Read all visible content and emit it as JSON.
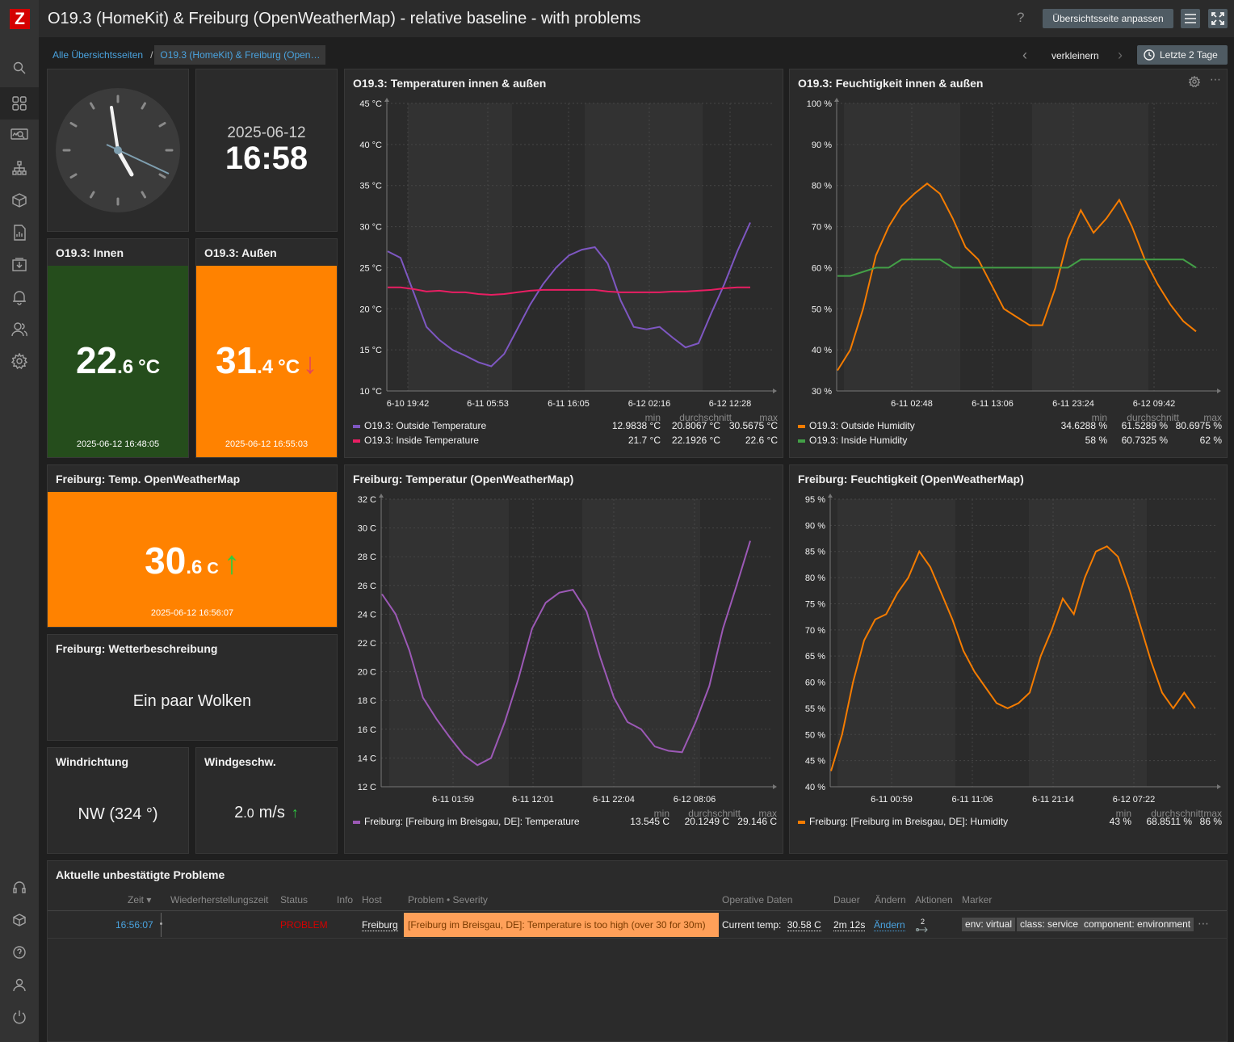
{
  "app": {
    "logo": "Z"
  },
  "header": {
    "title": "O19.3 (HomeKit) & Freiburg (OpenWeatherMap) - relative baseline - with problems",
    "help": "?",
    "edit_button": "Übersichtsseite anpassen"
  },
  "breadcrumb": {
    "root": "Alle Übersichtsseiten",
    "sep": "/",
    "current": "O19.3 (HomeKit) & Freiburg (Open…"
  },
  "timeline": {
    "prev": "‹",
    "zoom_out": "verkleinern",
    "next": "›",
    "range": "Letzte 2 Tage"
  },
  "sidebar": {
    "icons": [
      "search-icon",
      "dashboard-icon",
      "monitoring-icon",
      "network-icon",
      "inventory-icon",
      "reports-icon",
      "data-collection-icon",
      "alerts-icon",
      "users-icon",
      "settings-icon",
      "support-icon",
      "integrations-icon",
      "help-icon",
      "user-icon",
      "logout-icon"
    ]
  },
  "clock": {
    "time": "16:58"
  },
  "datetime": {
    "date": "2025-06-12",
    "time": "16:58"
  },
  "innen": {
    "title": "O19.3: Innen",
    "int": "22",
    "dec": ".6",
    "unit": "°C",
    "time": "2025-06-12 16:48:05",
    "color": "#254d1c"
  },
  "aussen": {
    "title": "O19.3: Außen",
    "int": "31",
    "dec": ".4",
    "unit": "°C",
    "arrow": "↓",
    "time": "2025-06-12 16:55:03",
    "color": "#ff8200"
  },
  "fr_temp": {
    "title": "Freiburg: Temp. OpenWeatherMap",
    "int": "30",
    "dec": ".6",
    "unit": "C",
    "arrow": "↑",
    "time": "2025-06-12 16:56:07",
    "color": "#ff8200"
  },
  "weather": {
    "title": "Freiburg: Wetterbeschreibung",
    "value": "Ein paar Wolken"
  },
  "wind_dir": {
    "title": "Windrichtung",
    "value": "NW (324 °)"
  },
  "wind_speed": {
    "title": "Windgeschw.",
    "int": "2",
    "dec": ".0",
    "unit": "m/s",
    "arrow": "↑"
  },
  "legend_heads": {
    "min": "min",
    "avg": "durchschnitt",
    "max": "max"
  },
  "chart_data": [
    {
      "type": "line",
      "title": "O19.3: Temperaturen innen & außen",
      "y_ticks": [
        "45 °C",
        "40 °C",
        "35 °C",
        "30 °C",
        "25 °C",
        "20 °C",
        "15 °C",
        "10 °C"
      ],
      "ylim": [
        10,
        45
      ],
      "x_ticks": [
        "6-10 19:42",
        "6-11 05:53",
        "6-11 16:05",
        "6-12 02:16",
        "6-12 12:28"
      ],
      "series": [
        {
          "name": "O19.3: Outside Temperature",
          "color": "#7e57c2",
          "min": "12.9838 °C",
          "avg": "20.8067 °C",
          "max": "30.5675 °C",
          "values": [
            27,
            26.2,
            22,
            17.8,
            16.2,
            15,
            14.3,
            13.5,
            13,
            14.5,
            17.5,
            20.5,
            23,
            25,
            26.5,
            27.2,
            27.5,
            25.5,
            21,
            17.8,
            17.5,
            17.8,
            16.5,
            15.3,
            15.8,
            19.5,
            23,
            27,
            30.5
          ]
        },
        {
          "name": "O19.3: Inside Temperature",
          "color": "#e91e63",
          "min": "21.7 °C",
          "avg": "22.1926 °C",
          "max": "22.6 °C",
          "values": [
            22.6,
            22.6,
            22.4,
            22.1,
            22.2,
            22,
            22,
            21.8,
            21.7,
            21.8,
            22,
            22.2,
            22.3,
            22.3,
            22.3,
            22.3,
            22.3,
            22.1,
            22,
            22,
            22,
            22,
            22.1,
            22.1,
            22.2,
            22.3,
            22.5,
            22.6,
            22.6
          ]
        }
      ]
    },
    {
      "type": "line",
      "title": "O19.3: Feuchtigkeit innen & außen",
      "y_ticks": [
        "100 %",
        "90 %",
        "80 %",
        "70 %",
        "60 %",
        "50 %",
        "40 %",
        "30 %"
      ],
      "ylim": [
        30,
        100
      ],
      "x_ticks": [
        "6-11 02:48",
        "6-11 13:06",
        "6-11 23:24",
        "6-12 09:42"
      ],
      "series": [
        {
          "name": "O19.3: Outside Humidity",
          "color": "#f57c00",
          "min": "34.6288 %",
          "avg": "61.5289 %",
          "max": "80.6975 %",
          "values": [
            35,
            40,
            50,
            63,
            70,
            75,
            78,
            80.5,
            78,
            72,
            65,
            62,
            56,
            50,
            48,
            46,
            46,
            55,
            67,
            74,
            68.5,
            72,
            76.5,
            70,
            62,
            56,
            51,
            47,
            44.5
          ]
        },
        {
          "name": "O19.3: Inside Humidity",
          "color": "#43a047",
          "min": "58 %",
          "avg": "60.7325 %",
          "max": "62 %",
          "values": [
            58,
            58,
            59,
            60,
            60,
            62,
            62,
            62,
            62,
            60,
            60,
            60,
            60,
            60,
            60,
            60,
            60,
            60,
            60,
            62,
            62,
            62,
            62,
            62,
            62,
            62,
            62,
            62,
            60
          ]
        }
      ],
      "controls": {
        "settings": "gear-icon",
        "more": "more-icon"
      }
    },
    {
      "type": "line",
      "title": "Freiburg: Temperatur (OpenWeatherMap)",
      "y_ticks": [
        "32 C",
        "30 C",
        "28 C",
        "26 C",
        "24 C",
        "22 C",
        "20 C",
        "18 C",
        "16 C",
        "14 C",
        "12 C"
      ],
      "ylim": [
        12,
        32
      ],
      "x_ticks": [
        "6-11 01:59",
        "6-11 12:01",
        "6-11 22:04",
        "6-12 08:06"
      ],
      "series": [
        {
          "name": "Freiburg: [Freiburg im Breisgau, DE]: Temperature",
          "color": "#9c59b6",
          "min": "13.545 C",
          "avg": "20.1249 C",
          "max": "29.146 C",
          "values": [
            25.4,
            24,
            21.5,
            18.2,
            16.7,
            15.4,
            14.2,
            13.5,
            14,
            16.5,
            19.5,
            23,
            24.8,
            25.5,
            25.7,
            24.2,
            21,
            18.2,
            16.5,
            16,
            14.8,
            14.5,
            14.4,
            16.5,
            19,
            23,
            26,
            29.1
          ]
        }
      ]
    },
    {
      "type": "line",
      "title": "Freiburg: Feuchtigkeit (OpenWeatherMap)",
      "y_ticks": [
        "95 %",
        "90 %",
        "85 %",
        "80 %",
        "75 %",
        "70 %",
        "65 %",
        "60 %",
        "55 %",
        "50 %",
        "45 %",
        "40 %"
      ],
      "ylim": [
        40,
        95
      ],
      "x_ticks": [
        "6-11 00:59",
        "6-11 11:06",
        "6-11 21:14",
        "6-12 07:22"
      ],
      "series": [
        {
          "name": "Freiburg: [Freiburg im Breisgau, DE]: Humidity",
          "color": "#f57c00",
          "min": "43 %",
          "avg": "68.8511 %",
          "max": "86 %",
          "values": [
            43,
            50,
            60,
            68,
            72,
            73,
            77,
            80,
            85,
            82,
            77,
            72,
            66,
            62,
            59,
            56,
            55,
            56,
            58,
            65,
            70,
            76,
            73,
            80,
            85,
            86,
            84,
            78,
            71,
            64,
            58,
            55,
            58,
            55
          ]
        }
      ]
    }
  ],
  "problems": {
    "title": "Aktuelle unbestätigte Probleme",
    "columns": [
      "Zeit ▾",
      "Wiederherstellungszeit",
      "Status",
      "Info",
      "Host",
      "Problem • Severity",
      "Operative Daten",
      "Dauer",
      "Ändern",
      "Aktionen",
      "Marker"
    ],
    "rows": [
      {
        "time": "16:56:07",
        "status": "PROBLEM",
        "host": "Freiburg",
        "problem": "[Freiburg im Breisgau, DE]: Temperature is too high (over 30 for 30m)",
        "opdata_label": "Current temp:",
        "opdata_value": "30.58 C",
        "duration": "2m 12s",
        "ack": "Ändern",
        "actions": "2",
        "tags": [
          "env: virtual",
          "class: service",
          "component: environment"
        ],
        "more": "⋯",
        "severity_color": "#ffa059"
      }
    ]
  }
}
